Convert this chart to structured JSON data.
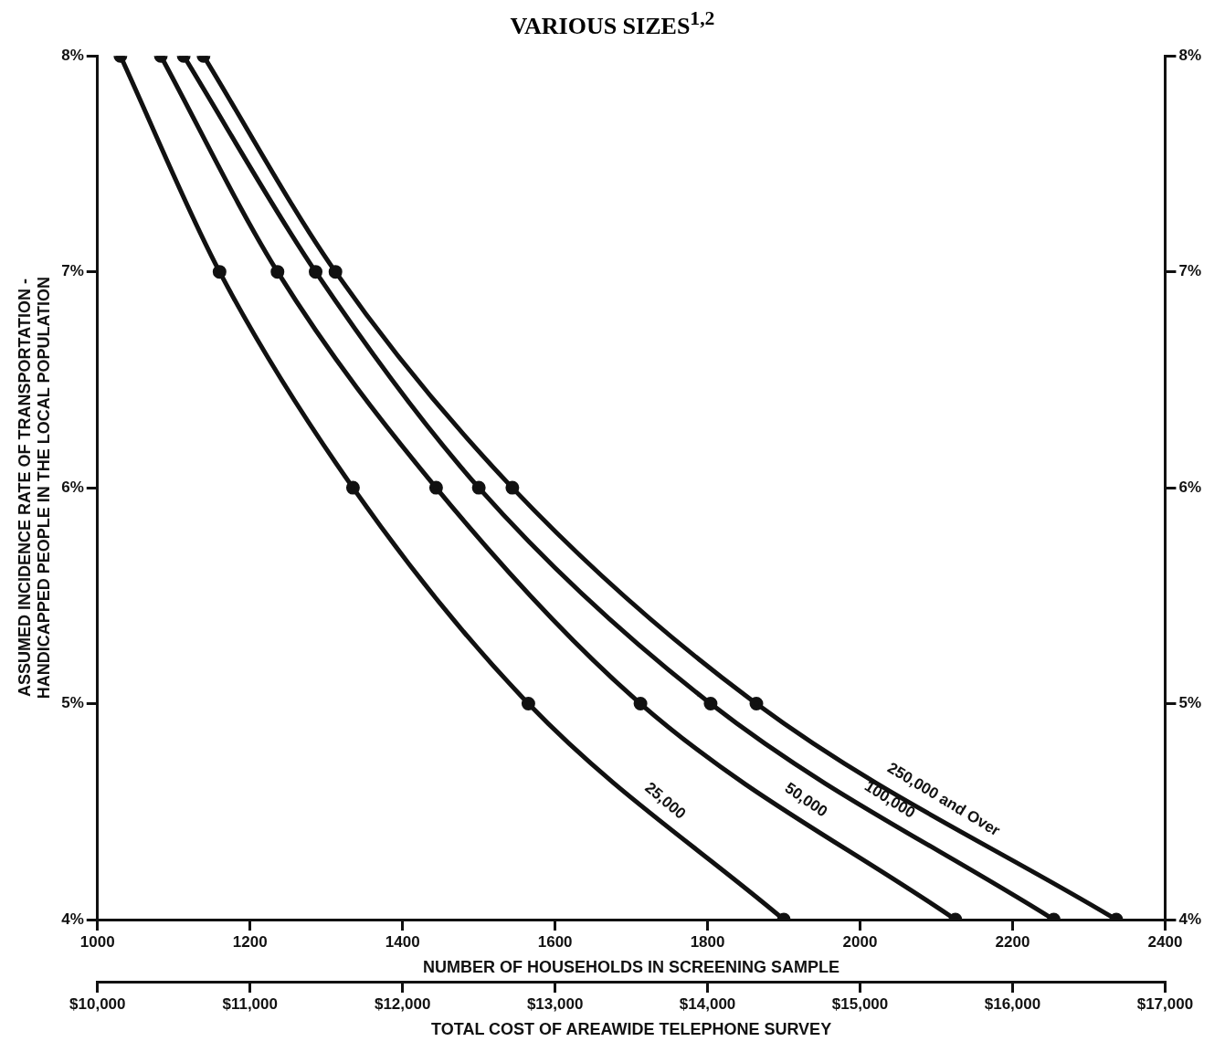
{
  "chart_data": {
    "type": "line",
    "title": "VARIOUS SIZES$^{1,2}$",
    "xlabel": "NUMBER OF HOUSEHOLDS IN SCREENING SAMPLE",
    "ylabel": "ASSUMED INCIDENCE RATE OF TRANSPORTATION -\nHANDICAPPED PEOPLE IN THE LOCAL POPULATION",
    "x2label": "TOTAL COST OF AREAWIDE TELEPHONE SURVEY",
    "xlim": [
      1000,
      2400
    ],
    "xticks": [
      1000,
      1200,
      1400,
      1600,
      1800,
      2000,
      2200,
      2400
    ],
    "ylim": [
      4,
      8
    ],
    "yticks": [
      {
        "value": 4,
        "label": "4%"
      },
      {
        "value": 5,
        "label": "5%"
      },
      {
        "value": 6,
        "label": "6%"
      },
      {
        "value": 7,
        "label": "7%"
      },
      {
        "value": 8,
        "label": "8%"
      }
    ],
    "y2lim": [
      4,
      8
    ],
    "y2ticks": [
      {
        "value": 4,
        "label": "4%"
      },
      {
        "value": 5,
        "label": "5%"
      },
      {
        "value": 6,
        "label": "6%"
      },
      {
        "value": 7,
        "label": "7%"
      },
      {
        "value": 8,
        "label": "8%"
      }
    ],
    "x2lim": [
      10000,
      17000
    ],
    "x2ticks": [
      {
        "value": 10000,
        "label": "$10,000"
      },
      {
        "value": 11000,
        "label": "$11,000"
      },
      {
        "value": 12000,
        "label": "$12,000"
      },
      {
        "value": 13000,
        "label": "$13,000"
      },
      {
        "value": 14000,
        "label": "$14,000"
      },
      {
        "value": 15000,
        "label": "$15,000"
      },
      {
        "value": 16000,
        "label": "$16,000"
      },
      {
        "value": 17000,
        "label": "$17,000"
      }
    ],
    "marker": "circle",
    "legend": false,
    "series": [
      {
        "name": "25,000",
        "color": "#111111",
        "x": [
          1030,
          1160,
          1335,
          1565,
          1900
        ],
        "values": [
          8,
          7,
          6,
          5,
          4
        ]
      },
      {
        "name": "50,000",
        "color": "#111111",
        "x": [
          1083,
          1236,
          1444,
          1712,
          2125
        ],
        "values": [
          8,
          7,
          6,
          5,
          4
        ]
      },
      {
        "name": "100,000",
        "color": "#111111",
        "x": [
          1113,
          1286,
          1500,
          1804,
          2254
        ],
        "values": [
          8,
          7,
          6,
          5,
          4
        ]
      },
      {
        "name": "250,000 and Over",
        "color": "#111111",
        "x": [
          1139,
          1312,
          1544,
          1864,
          2336
        ],
        "values": [
          8,
          7,
          6,
          5,
          4
        ]
      }
    ]
  }
}
